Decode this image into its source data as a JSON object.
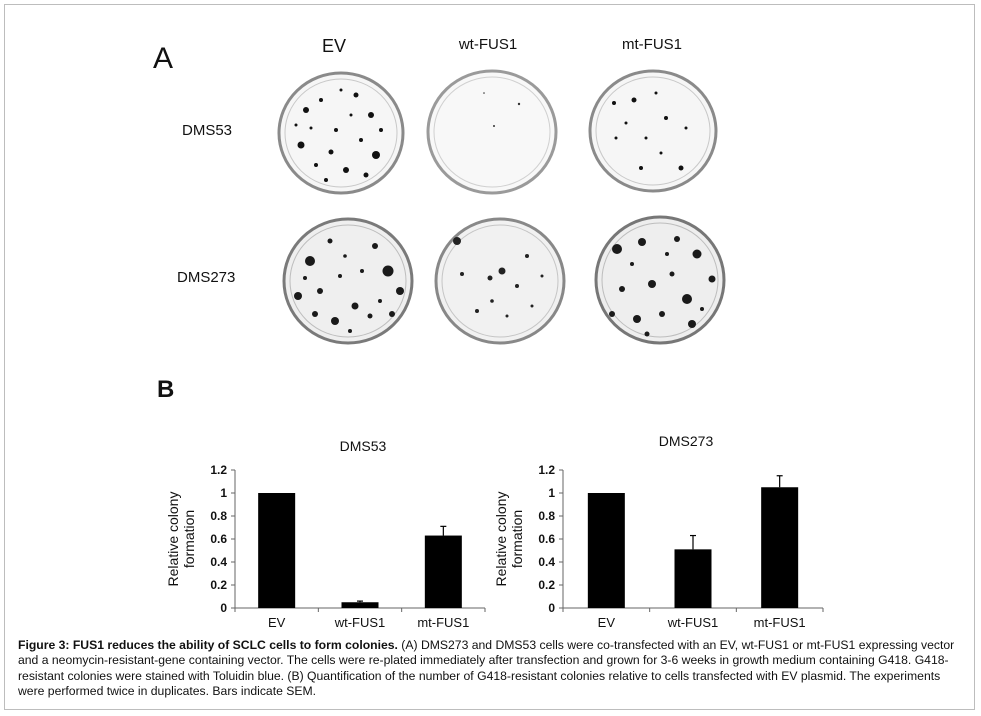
{
  "panel_a": {
    "letter": "A",
    "columns": [
      "EV",
      "wt-FUS1",
      "mt-FUS1"
    ],
    "rows": [
      "DMS53",
      "DMS273"
    ]
  },
  "panel_b": {
    "letter": "B"
  },
  "chart_data": [
    {
      "type": "bar",
      "title": "DMS53",
      "categories": [
        "EV",
        "wt-FUS1",
        "mt-FUS1"
      ],
      "values": [
        1.0,
        0.05,
        0.63
      ],
      "errors": [
        0,
        0.01,
        0.08
      ],
      "xlabel": "",
      "ylabel": "Relative colony formation",
      "ylim": [
        0,
        1.2
      ],
      "yticks": [
        "0",
        "0.2",
        "0.4",
        "0.6",
        "0.8",
        "1",
        "1.2"
      ],
      "bar_color": "#000000"
    },
    {
      "type": "bar",
      "title": "DMS273",
      "categories": [
        "EV",
        "wt-FUS1",
        "mt-FUS1"
      ],
      "values": [
        1.0,
        0.51,
        1.05
      ],
      "errors": [
        0,
        0.12,
        0.1
      ],
      "xlabel": "",
      "ylabel": "Relative colony formation",
      "ylim": [
        0,
        1.2
      ],
      "yticks": [
        "0",
        "0.2",
        "0.4",
        "0.6",
        "0.8",
        "1",
        "1.2"
      ],
      "bar_color": "#000000"
    }
  ],
  "caption": {
    "title": "Figure 3: FUS1 reduces the ability of SCLC cells to form colonies.",
    "body": " (A) DMS273 and DMS53 cells were co-transfected with an EV, wt-FUS1 or mt-FUS1 expressing vector and a neomycin-resistant-gene containing vector. The cells were re-plated immediately after transfection and grown for 3-6 weeks in growth medium containing G418. G418-resistant colonies were stained with Toluidin blue. (B) Quantification of the number of G418-resistant colonies relative to cells transfected with EV plasmid. The experiments were performed twice in duplicates. Bars indicate SEM."
  }
}
